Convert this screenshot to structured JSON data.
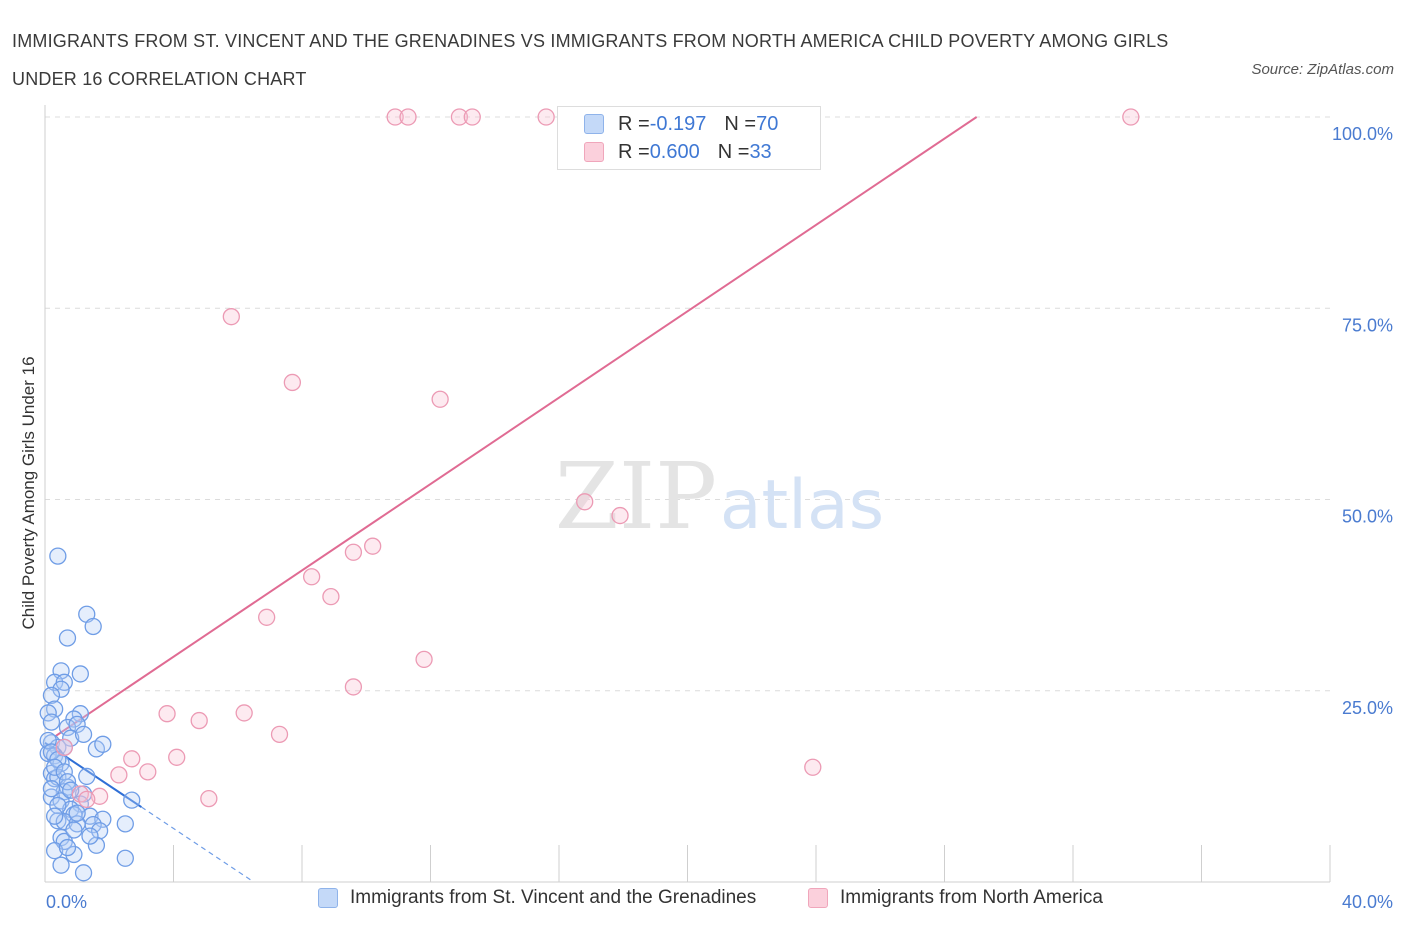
{
  "title": "IMMIGRANTS FROM ST. VINCENT AND THE GRENADINES VS IMMIGRANTS FROM NORTH AMERICA CHILD POVERTY AMONG GIRLS UNDER 16 CORRELATION CHART",
  "source": "Source: ZipAtlas.com",
  "watermark": {
    "zip": "ZIP",
    "atlas": "atlas"
  },
  "stats": [
    {
      "r_label": "R = ",
      "r_value": "-0.197",
      "n_label": "N = ",
      "n_value": "70",
      "color": "#4a86e8"
    },
    {
      "r_label": "R = ",
      "r_value": "0.600",
      "n_label": "N = ",
      "n_value": "33",
      "color": "#e8739a"
    }
  ],
  "chart_data": {
    "type": "scatter",
    "title": "IMMIGRANTS FROM ST. VINCENT AND THE GRENADINES VS IMMIGRANTS FROM NORTH AMERICA CHILD POVERTY AMONG GIRLS UNDER 16 CORRELATION CHART",
    "xlabel": "",
    "ylabel": "Child Poverty Among Girls Under 16",
    "xlim": [
      0,
      40
    ],
    "ylim": [
      0,
      100
    ],
    "x_tick_labels": [
      "0.0%",
      "40.0%"
    ],
    "y_tick_labels": [
      "25.0%",
      "50.0%",
      "75.0%",
      "100.0%"
    ],
    "y_ticks": [
      25,
      50,
      75,
      100
    ],
    "grid": true,
    "legend_position": "bottom",
    "series": [
      {
        "name": "Immigrants from St. Vincent and the Grenadines",
        "color": "#4a86e8",
        "trend": {
          "x0": 0,
          "y0": 18.2,
          "x1": 3.0,
          "y1": 9.8,
          "dashed_to_x": 6.4
        },
        "points": [
          [
            0.4,
            42.6
          ],
          [
            1.3,
            35.0
          ],
          [
            1.5,
            33.4
          ],
          [
            0.7,
            31.9
          ],
          [
            0.5,
            27.6
          ],
          [
            1.1,
            27.2
          ],
          [
            0.3,
            26.1
          ],
          [
            0.6,
            26.1
          ],
          [
            0.5,
            25.2
          ],
          [
            0.2,
            24.4
          ],
          [
            0.3,
            22.6
          ],
          [
            0.1,
            22.1
          ],
          [
            1.1,
            22.0
          ],
          [
            0.9,
            21.3
          ],
          [
            0.7,
            20.2
          ],
          [
            1.0,
            20.6
          ],
          [
            0.8,
            18.8
          ],
          [
            0.2,
            18.2
          ],
          [
            0.4,
            17.6
          ],
          [
            0.6,
            17.6
          ],
          [
            1.6,
            17.4
          ],
          [
            1.8,
            18.0
          ],
          [
            0.1,
            16.8
          ],
          [
            0.3,
            16.5
          ],
          [
            0.5,
            15.5
          ],
          [
            0.2,
            14.2
          ],
          [
            0.3,
            13.5
          ],
          [
            0.4,
            13.7
          ],
          [
            1.3,
            13.8
          ],
          [
            0.7,
            12.4
          ],
          [
            0.6,
            11.8
          ],
          [
            1.2,
            11.5
          ],
          [
            0.2,
            11.1
          ],
          [
            0.5,
            10.6
          ],
          [
            1.1,
            10.2
          ],
          [
            2.7,
            10.7
          ],
          [
            0.8,
            9.5
          ],
          [
            0.4,
            8.0
          ],
          [
            0.9,
            8.8
          ],
          [
            1.4,
            8.6
          ],
          [
            1.8,
            8.2
          ],
          [
            0.6,
            7.9
          ],
          [
            1.0,
            7.6
          ],
          [
            1.5,
            7.5
          ],
          [
            2.5,
            7.6
          ],
          [
            1.7,
            6.7
          ],
          [
            0.5,
            5.8
          ],
          [
            0.6,
            5.3
          ],
          [
            1.6,
            4.8
          ],
          [
            0.3,
            4.1
          ],
          [
            0.9,
            3.6
          ],
          [
            2.5,
            3.1
          ],
          [
            0.5,
            2.2
          ],
          [
            1.2,
            1.2
          ],
          [
            0.1,
            18.5
          ],
          [
            0.2,
            17.0
          ],
          [
            0.4,
            16.0
          ],
          [
            0.3,
            15.0
          ],
          [
            0.6,
            14.4
          ],
          [
            0.7,
            13.1
          ],
          [
            0.2,
            12.2
          ],
          [
            0.8,
            12.0
          ],
          [
            0.4,
            10.0
          ],
          [
            1.0,
            9.0
          ],
          [
            0.3,
            8.6
          ],
          [
            0.9,
            6.8
          ],
          [
            1.4,
            6.0
          ],
          [
            0.7,
            4.5
          ],
          [
            0.2,
            20.9
          ],
          [
            1.2,
            19.3
          ]
        ]
      },
      {
        "name": "Immigrants from North America",
        "color": "#e8739a",
        "trend": {
          "x0": 0.3,
          "y0": 19.0,
          "x1": 29.0,
          "y1": 100.0
        },
        "points": [
          [
            10.9,
            100
          ],
          [
            11.3,
            100
          ],
          [
            12.9,
            100
          ],
          [
            13.3,
            100
          ],
          [
            15.6,
            100
          ],
          [
            17.6,
            100
          ],
          [
            33.8,
            100
          ],
          [
            5.8,
            73.9
          ],
          [
            7.7,
            65.3
          ],
          [
            12.3,
            63.1
          ],
          [
            16.8,
            49.7
          ],
          [
            17.9,
            47.9
          ],
          [
            10.2,
            43.9
          ],
          [
            9.6,
            43.1
          ],
          [
            8.3,
            39.9
          ],
          [
            8.9,
            37.3
          ],
          [
            6.9,
            34.6
          ],
          [
            11.8,
            29.1
          ],
          [
            9.6,
            25.5
          ],
          [
            3.8,
            22.0
          ],
          [
            6.2,
            22.1
          ],
          [
            4.8,
            21.1
          ],
          [
            7.3,
            19.3
          ],
          [
            2.7,
            16.1
          ],
          [
            4.1,
            16.3
          ],
          [
            3.2,
            14.4
          ],
          [
            2.3,
            14.0
          ],
          [
            23.9,
            15.0
          ],
          [
            1.1,
            11.5
          ],
          [
            1.7,
            11.2
          ],
          [
            5.1,
            10.9
          ],
          [
            0.6,
            17.6
          ],
          [
            1.3,
            10.8
          ]
        ]
      }
    ]
  }
}
